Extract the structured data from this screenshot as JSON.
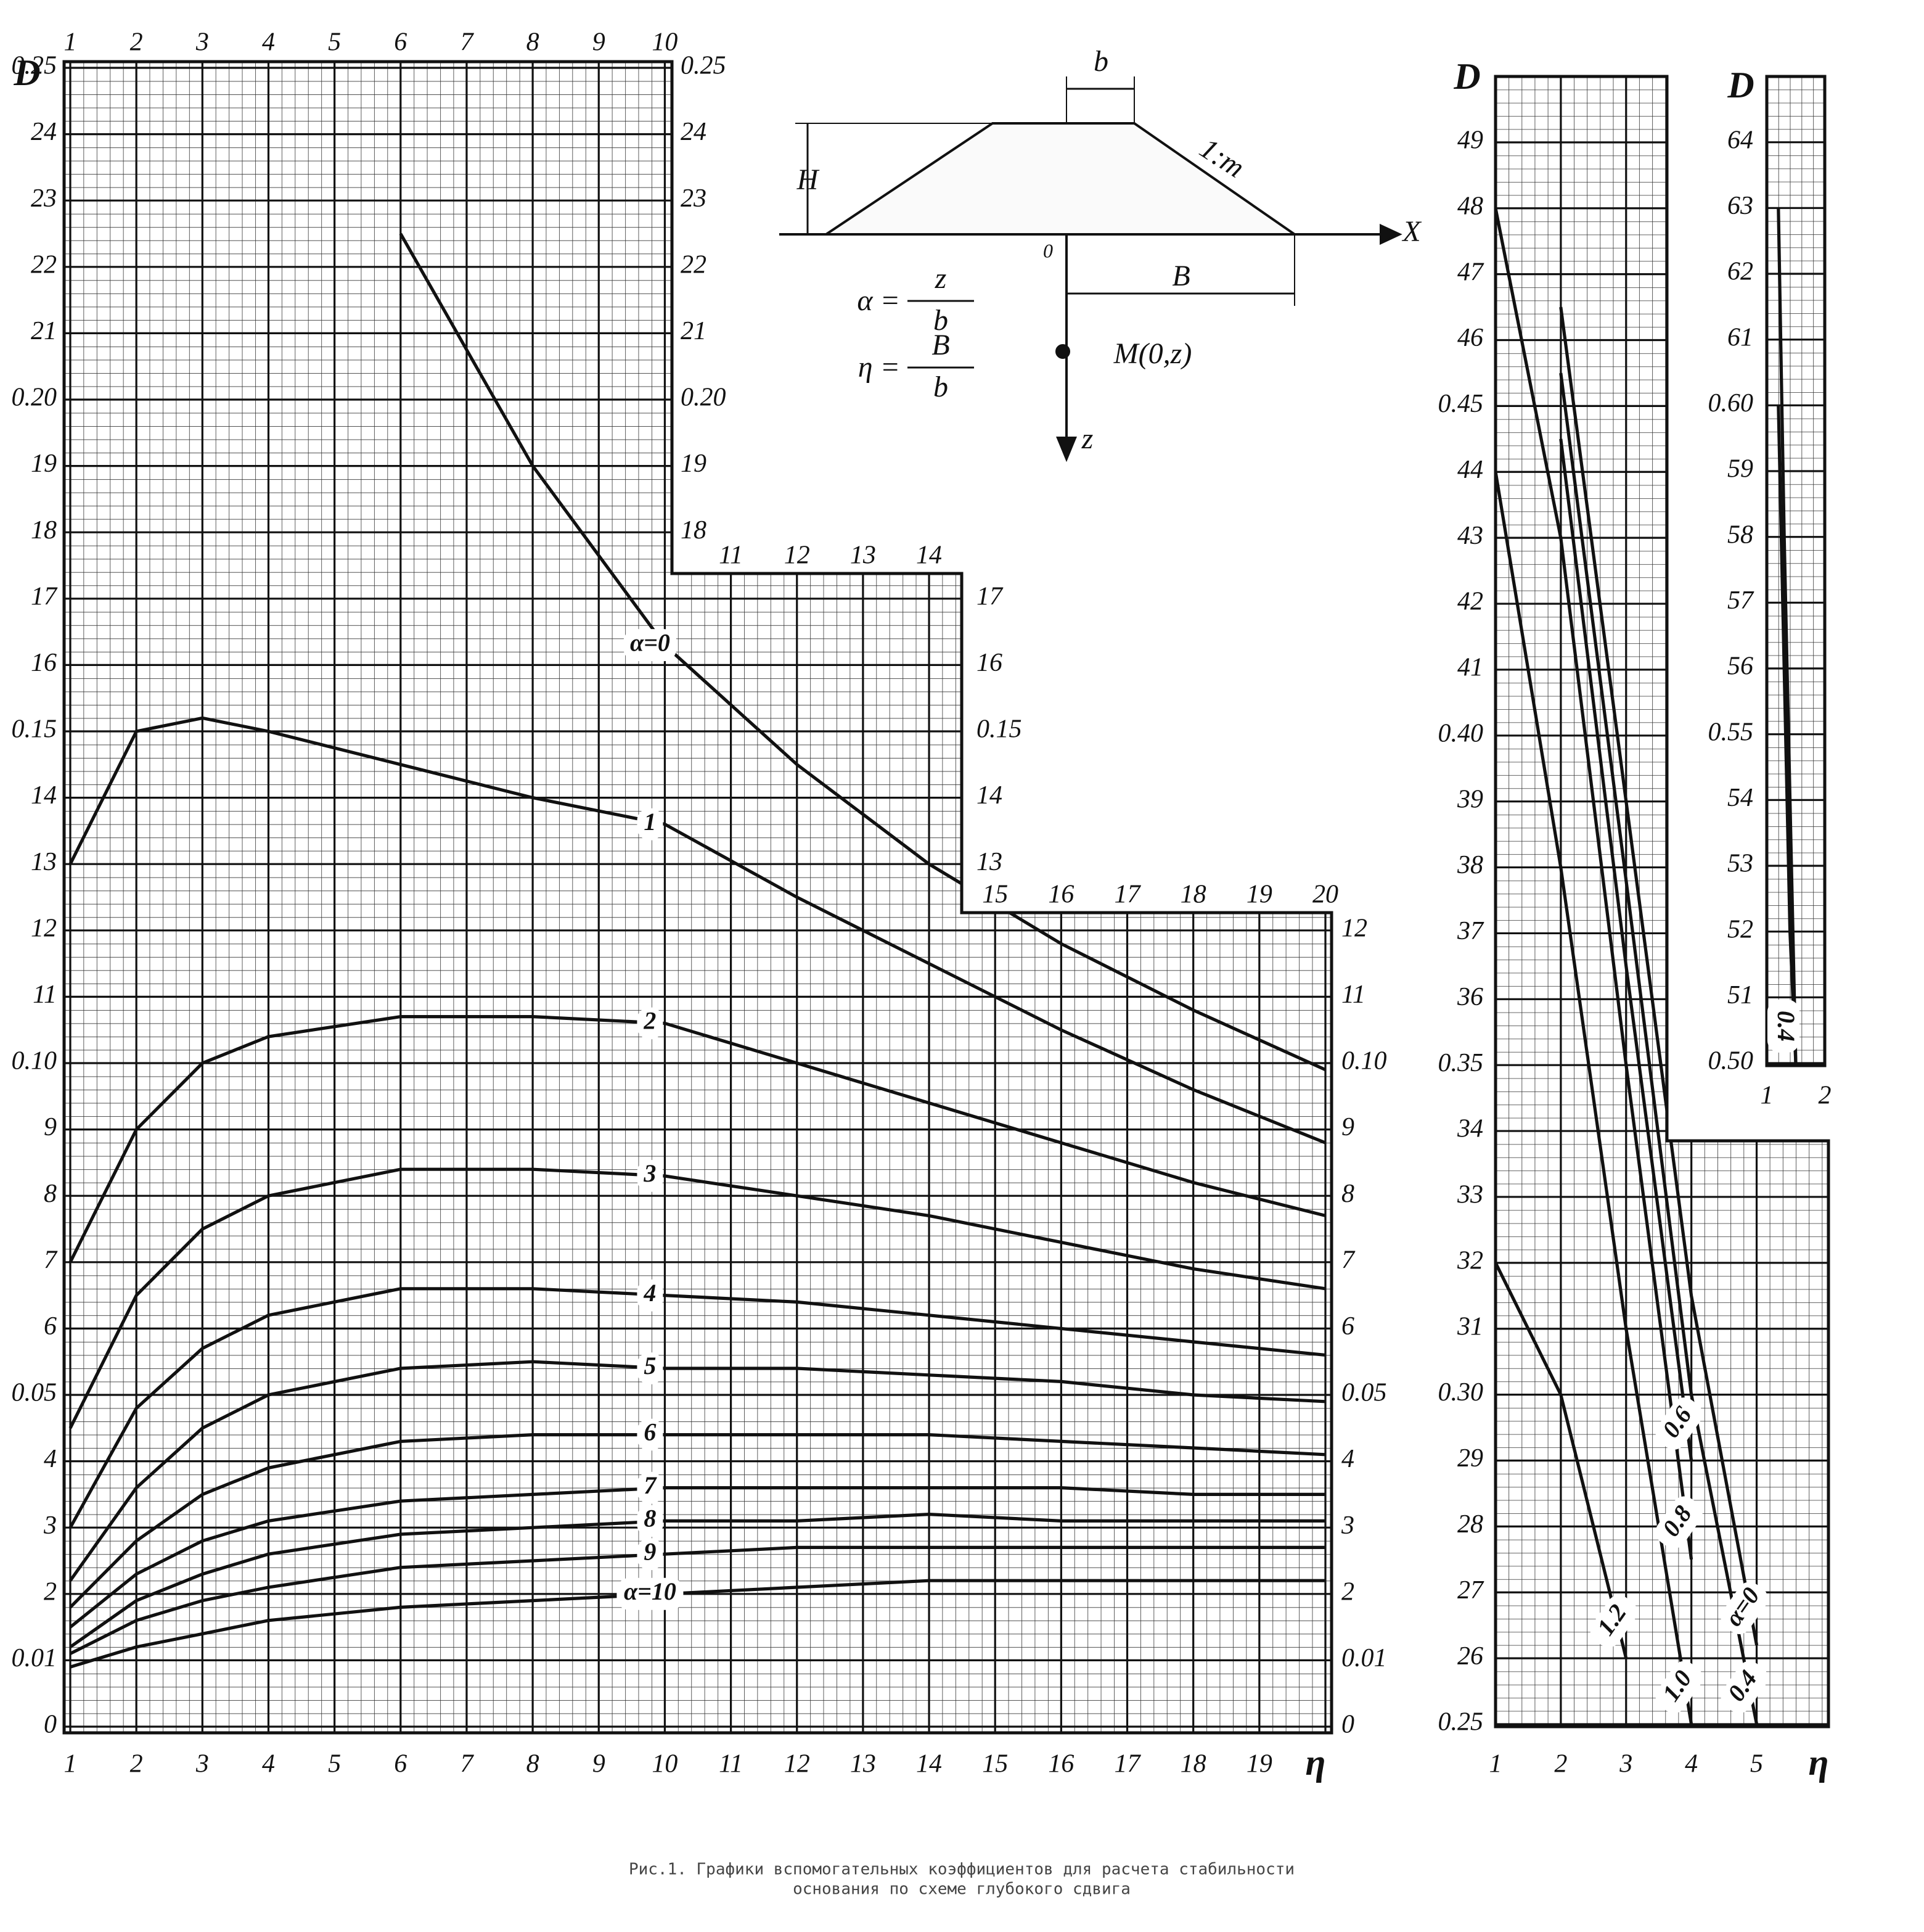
{
  "chart_data": [
    {
      "type": "line",
      "y_label": "D",
      "x_label": "η",
      "x": [
        1,
        2,
        3,
        4,
        6,
        8,
        10,
        12,
        14,
        16,
        18,
        20
      ],
      "xlim": [
        1,
        20
      ],
      "ylim": [
        0,
        0.25
      ],
      "xticks": [
        1,
        2,
        3,
        4,
        5,
        6,
        7,
        8,
        9,
        10,
        11,
        12,
        13,
        14,
        15,
        16,
        17,
        18,
        19,
        20
      ],
      "yticks": [
        0,
        0.01,
        {
          "value": 0.02,
          "label": "2"
        },
        {
          "value": 0.03,
          "label": "3"
        },
        {
          "value": 0.04,
          "label": "4"
        },
        0.05,
        {
          "value": 0.06,
          "label": "6"
        },
        {
          "value": 0.07,
          "label": "7"
        },
        {
          "value": 0.08,
          "label": "8"
        },
        {
          "value": 0.09,
          "label": "9"
        },
        {
          "value": 0.1,
          "label": "0.10"
        },
        {
          "value": 0.11,
          "label": "11"
        },
        {
          "value": 0.12,
          "label": "12"
        },
        {
          "value": 0.13,
          "label": "13"
        },
        {
          "value": 0.14,
          "label": "14"
        },
        0.15,
        {
          "value": 0.16,
          "label": "16"
        },
        {
          "value": 0.17,
          "label": "17"
        },
        {
          "value": 0.18,
          "label": "18"
        },
        {
          "value": 0.19,
          "label": "19"
        },
        {
          "value": 0.2,
          "label": "0.20"
        },
        {
          "value": 0.21,
          "label": "21"
        },
        {
          "value": 0.22,
          "label": "22"
        },
        {
          "value": 0.23,
          "label": "23"
        },
        {
          "value": 0.24,
          "label": "24"
        },
        0.25
      ],
      "grid": true,
      "series": [
        {
          "name": "α=0",
          "color": "#111",
          "values": [
            null,
            null,
            null,
            null,
            0.225,
            0.19,
            0.163,
            0.145,
            0.13,
            0.118,
            0.108,
            0.099
          ]
        },
        {
          "name": "1",
          "color": "#111",
          "values": [
            0.13,
            0.15,
            0.152,
            0.15,
            0.145,
            0.14,
            0.136,
            0.125,
            0.115,
            0.105,
            0.096,
            0.088
          ]
        },
        {
          "name": "2",
          "color": "#111",
          "values": [
            0.07,
            0.09,
            0.1,
            0.104,
            0.107,
            0.107,
            0.106,
            0.1,
            0.094,
            0.088,
            0.082,
            0.077
          ]
        },
        {
          "name": "3",
          "color": "#111",
          "values": [
            0.045,
            0.065,
            0.075,
            0.08,
            0.084,
            0.084,
            0.083,
            0.08,
            0.077,
            0.073,
            0.069,
            0.066
          ]
        },
        {
          "name": "4",
          "color": "#111",
          "values": [
            0.03,
            0.048,
            0.057,
            0.062,
            0.066,
            0.066,
            0.065,
            0.064,
            0.062,
            0.06,
            0.058,
            0.056
          ]
        },
        {
          "name": "5",
          "color": "#111",
          "values": [
            0.022,
            0.036,
            0.045,
            0.05,
            0.054,
            0.055,
            0.054,
            0.054,
            0.053,
            0.052,
            0.05,
            0.049
          ]
        },
        {
          "name": "6",
          "color": "#111",
          "values": [
            0.018,
            0.028,
            0.035,
            0.039,
            0.043,
            0.044,
            0.044,
            0.044,
            0.044,
            0.043,
            0.042,
            0.041
          ]
        },
        {
          "name": "7",
          "color": "#111",
          "values": [
            0.015,
            0.023,
            0.028,
            0.031,
            0.034,
            0.035,
            0.036,
            0.036,
            0.036,
            0.036,
            0.035,
            0.035
          ]
        },
        {
          "name": "8",
          "color": "#111",
          "values": [
            0.012,
            0.019,
            0.023,
            0.026,
            0.029,
            0.03,
            0.031,
            0.031,
            0.032,
            0.031,
            0.031,
            0.031
          ]
        },
        {
          "name": "9",
          "color": "#111",
          "values": [
            0.011,
            0.016,
            0.019,
            0.021,
            0.024,
            0.025,
            0.026,
            0.027,
            0.027,
            0.027,
            0.027,
            0.027
          ]
        },
        {
          "name": "α=10",
          "color": "#111",
          "values": [
            0.009,
            0.012,
            0.014,
            0.016,
            0.018,
            0.019,
            0.02,
            0.021,
            0.022,
            0.022,
            0.022,
            0.022
          ]
        }
      ]
    },
    {
      "type": "line",
      "y_label": "D",
      "x_label": "η",
      "x": [
        1,
        2,
        3,
        4,
        5
      ],
      "xlim": [
        1,
        6.1
      ],
      "ylim": [
        0.25,
        0.5
      ],
      "xticks": [
        1,
        2,
        3,
        4,
        5
      ],
      "yticks": [
        0.25,
        {
          "value": 0.26,
          "label": "26"
        },
        {
          "value": 0.27,
          "label": "27"
        },
        {
          "value": 0.28,
          "label": "28"
        },
        {
          "value": 0.29,
          "label": "29"
        },
        {
          "value": 0.3,
          "label": "0.30"
        },
        {
          "value": 0.31,
          "label": "31"
        },
        {
          "value": 0.32,
          "label": "32"
        },
        {
          "value": 0.33,
          "label": "33"
        },
        {
          "value": 0.34,
          "label": "34"
        },
        0.35,
        {
          "value": 0.36,
          "label": "36"
        },
        {
          "value": 0.37,
          "label": "37"
        },
        {
          "value": 0.38,
          "label": "38"
        },
        {
          "value": 0.39,
          "label": "39"
        },
        {
          "value": 0.4,
          "label": "0.40"
        },
        {
          "value": 0.41,
          "label": "41"
        },
        {
          "value": 0.42,
          "label": "42"
        },
        {
          "value": 0.43,
          "label": "43"
        },
        {
          "value": 0.44,
          "label": "44"
        },
        0.45,
        {
          "value": 0.46,
          "label": "46"
        },
        {
          "value": 0.47,
          "label": "47"
        },
        {
          "value": 0.48,
          "label": "48"
        },
        {
          "value": 0.49,
          "label": "49"
        }
      ],
      "grid": true,
      "series": [
        {
          "name": "α=0",
          "color": "#111",
          "values": [
            null,
            0.465,
            0.39,
            0.315,
            0.262
          ]
        },
        {
          "name": "0.4",
          "color": "#111",
          "values": [
            null,
            0.455,
            0.378,
            0.3,
            0.25
          ]
        },
        {
          "name": "0.6",
          "color": "#111",
          "values": [
            null,
            0.445,
            0.365,
            0.29,
            null
          ]
        },
        {
          "name": "0.8",
          "color": "#111",
          "values": [
            0.48,
            0.43,
            0.35,
            0.275,
            null
          ]
        },
        {
          "name": "1.0",
          "color": "#111",
          "values": [
            0.44,
            0.38,
            0.31,
            0.25,
            null
          ]
        },
        {
          "name": "1.2",
          "color": "#111",
          "values": [
            0.32,
            0.3,
            0.26,
            null,
            null
          ]
        }
      ]
    },
    {
      "type": "line",
      "y_label": "D",
      "x": [
        1.2,
        1.3,
        1.4,
        1.5
      ],
      "xlim": [
        1,
        2
      ],
      "ylim": [
        0.5,
        0.65
      ],
      "xticks": [
        1,
        2
      ],
      "yticks": [
        {
          "value": 0.5,
          "label": "0.50"
        },
        {
          "value": 0.51,
          "label": "51"
        },
        {
          "value": 0.52,
          "label": "52"
        },
        {
          "value": 0.53,
          "label": "53"
        },
        {
          "value": 0.54,
          "label": "54"
        },
        0.55,
        {
          "value": 0.56,
          "label": "56"
        },
        {
          "value": 0.57,
          "label": "57"
        },
        {
          "value": 0.58,
          "label": "58"
        },
        {
          "value": 0.59,
          "label": "59"
        },
        {
          "value": 0.6,
          "label": "0.60"
        },
        {
          "value": 0.61,
          "label": "61"
        },
        {
          "value": 0.62,
          "label": "62"
        },
        {
          "value": 0.63,
          "label": "63"
        },
        {
          "value": 0.64,
          "label": "64"
        }
      ],
      "grid": true,
      "series": [
        {
          "name": "α=0",
          "color": "#111",
          "values": [
            0.63,
            0.58,
            0.54,
            0.5
          ]
        },
        {
          "name": "0.4",
          "color": "#111",
          "values": [
            0.6,
            0.56,
            0.52,
            0.5
          ]
        }
      ]
    }
  ],
  "diagram": {
    "b": "b",
    "H": "H",
    "slope": "1:m",
    "X": "X",
    "origin": "0",
    "B": "B",
    "point": "M(0,z)",
    "z": "z",
    "alpha": {
      "lhs": "α =",
      "num": "z",
      "den": "b"
    },
    "eta": {
      "lhs": "η =",
      "num": "B",
      "den": "b"
    }
  },
  "caption": [
    "Рис.1. Графики вспомогательных коэффициентов для расчета стабильности",
    "основания по схеме глубокого сдвига"
  ]
}
